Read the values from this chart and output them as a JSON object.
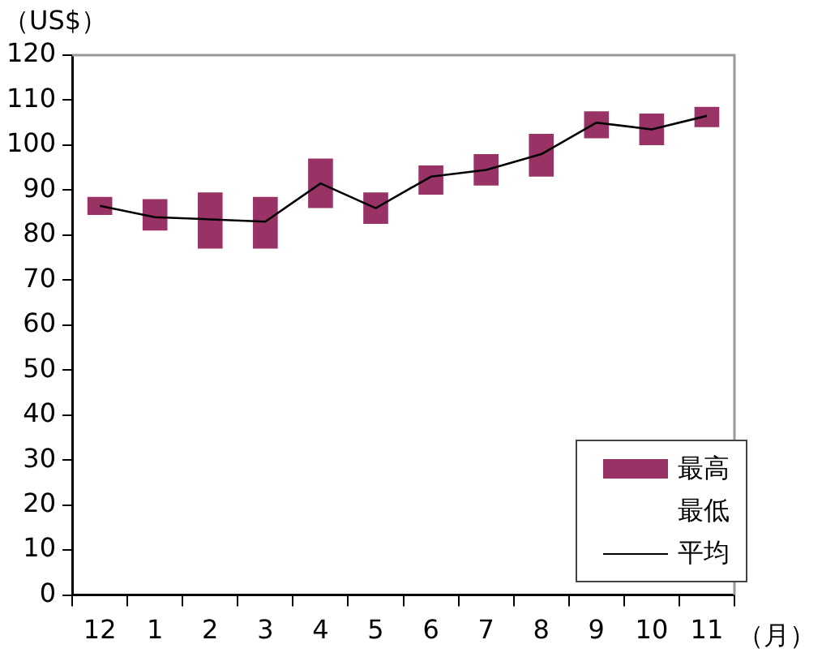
{
  "chart_data": {
    "type": "bar",
    "xlabel": "（月）",
    "ylabel": "（US$）",
    "categories": [
      "12",
      "1",
      "2",
      "3",
      "4",
      "5",
      "6",
      "7",
      "8",
      "9",
      "10",
      "11"
    ],
    "series": [
      {
        "name": "最高",
        "color": "#993366",
        "base": [
          84.5,
          81,
          77,
          77,
          86,
          82.5,
          89,
          91,
          93,
          101.5,
          100,
          104
        ],
        "values": [
          4,
          7,
          12.5,
          11.5,
          11,
          7,
          6.5,
          7,
          9.5,
          6,
          7,
          4.5
        ]
      },
      {
        "name": "平均",
        "type": "line",
        "color": "#000000",
        "values": [
          86.5,
          84,
          83.5,
          83,
          91.5,
          86,
          93,
          94.5,
          98,
          105,
          103.5,
          106.5
        ]
      }
    ],
    "ylim": [
      0,
      120
    ],
    "yticks": [
      0,
      10,
      20,
      30,
      40,
      50,
      60,
      70,
      80,
      90,
      100,
      110,
      120
    ],
    "annotations": [
      "最低"
    ],
    "grid": false,
    "legend": "bottom right"
  }
}
